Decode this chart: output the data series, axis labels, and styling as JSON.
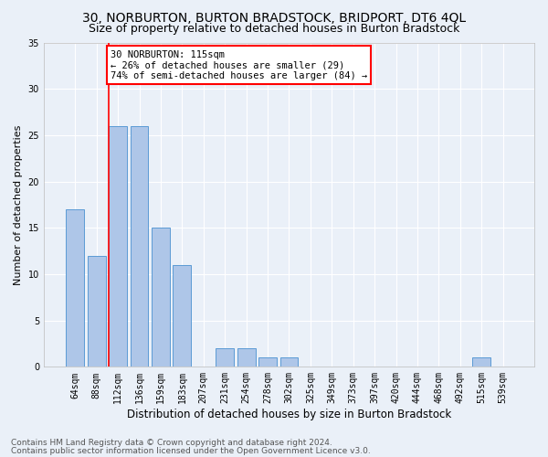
{
  "title": "30, NORBURTON, BURTON BRADSTOCK, BRIDPORT, DT6 4QL",
  "subtitle": "Size of property relative to detached houses in Burton Bradstock",
  "xlabel": "Distribution of detached houses by size in Burton Bradstock",
  "ylabel": "Number of detached properties",
  "categories": [
    "64sqm",
    "88sqm",
    "112sqm",
    "136sqm",
    "159sqm",
    "183sqm",
    "207sqm",
    "231sqm",
    "254sqm",
    "278sqm",
    "302sqm",
    "325sqm",
    "349sqm",
    "373sqm",
    "397sqm",
    "420sqm",
    "444sqm",
    "468sqm",
    "492sqm",
    "515sqm",
    "539sqm"
  ],
  "values": [
    17,
    12,
    26,
    26,
    15,
    11,
    0,
    2,
    2,
    1,
    1,
    0,
    0,
    0,
    0,
    0,
    0,
    0,
    0,
    1,
    0
  ],
  "bar_color": "#aec6e8",
  "bar_edge_color": "#5b9bd5",
  "red_line_bin_index": 2,
  "annotation_text": "30 NORBURTON: 115sqm\n← 26% of detached houses are smaller (29)\n74% of semi-detached houses are larger (84) →",
  "annotation_box_color": "white",
  "annotation_box_edge_color": "red",
  "ylim": [
    0,
    35
  ],
  "yticks": [
    0,
    5,
    10,
    15,
    20,
    25,
    30,
    35
  ],
  "background_color": "#eaf0f8",
  "grid_color": "white",
  "footer_line1": "Contains HM Land Registry data © Crown copyright and database right 2024.",
  "footer_line2": "Contains public sector information licensed under the Open Government Licence v3.0.",
  "title_fontsize": 10,
  "subtitle_fontsize": 9,
  "xlabel_fontsize": 8.5,
  "ylabel_fontsize": 8,
  "tick_fontsize": 7,
  "annotation_fontsize": 7.5,
  "footer_fontsize": 6.5
}
